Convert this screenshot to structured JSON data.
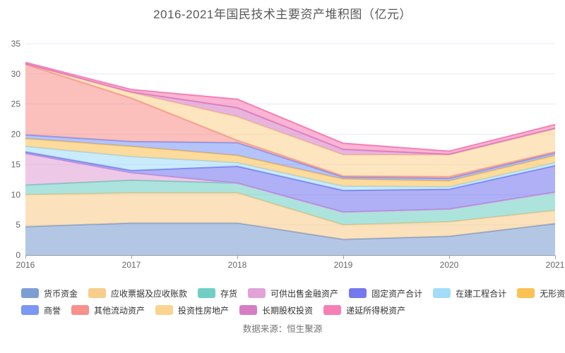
{
  "title": "2016-2021年国民技术主要资产堆积图（亿元）",
  "source": "数据来源：恒生聚源",
  "axis_colors": {
    "grid": "#e3e9f4",
    "axis_line": "#999ea5",
    "tick_label": "#666666"
  },
  "chart_data": {
    "type": "area",
    "stacked": true,
    "title": "2016-2021年国民技术主要资产堆积图（亿元）",
    "xlabel": "",
    "ylabel": "",
    "unit": "亿元",
    "x": [
      2016,
      2017,
      2018,
      2019,
      2020,
      2021
    ],
    "x_tick_labels": [
      "2016",
      "2017",
      "2018",
      "2019",
      "2020",
      "2021"
    ],
    "y_ticks": [
      0,
      5,
      10,
      15,
      20,
      25,
      30,
      35
    ],
    "ylim": [
      0,
      35
    ],
    "grid": true,
    "legend_position": "bottom",
    "legend_rows": [
      [
        0,
        1,
        2,
        3,
        4,
        5,
        6
      ],
      [
        7,
        8,
        9,
        10,
        11
      ]
    ],
    "series": [
      {
        "name": "货币资金",
        "color": "#7C9FD3",
        "values": [
          4.7,
          5.3,
          5.3,
          2.6,
          3.1,
          5.2
        ]
      },
      {
        "name": "应收票据及应收账款",
        "color": "#F8CC8B",
        "values": [
          5.3,
          5.0,
          5.0,
          2.4,
          2.4,
          2.2
        ]
      },
      {
        "name": "存货",
        "color": "#71CEC5",
        "values": [
          1.6,
          2.1,
          1.6,
          2.1,
          2.1,
          3.0
        ]
      },
      {
        "name": "可供出售金融资产",
        "color": "#E2A2D6",
        "values": [
          5.2,
          1.2,
          0.0,
          0.0,
          0.0,
          0.0
        ]
      },
      {
        "name": "固定资产合计",
        "color": "#7577EE",
        "values": [
          0.3,
          0.4,
          2.8,
          3.6,
          3.3,
          4.4
        ]
      },
      {
        "name": "在建工程合计",
        "color": "#A3DCF9",
        "values": [
          0.9,
          2.3,
          0.6,
          0.7,
          0.4,
          0.5
        ]
      },
      {
        "name": "无形资产",
        "color": "#FBC155",
        "values": [
          1.3,
          1.7,
          1.2,
          1.2,
          1.0,
          1.2
        ]
      },
      {
        "name": "商誉",
        "color": "#7D97F5",
        "values": [
          0.6,
          0.8,
          2.1,
          0.3,
          0.4,
          0.4
        ]
      },
      {
        "name": "其他流动资产",
        "color": "#F8908B",
        "values": [
          11.7,
          7.2,
          0.4,
          0.2,
          0.3,
          0.2
        ]
      },
      {
        "name": "投资性房地产",
        "color": "#FBD391",
        "values": [
          0.1,
          0.9,
          3.9,
          3.5,
          3.6,
          3.8
        ]
      },
      {
        "name": "长期股权投资",
        "color": "#D67EC4",
        "values": [
          0.0,
          0.1,
          1.5,
          0.9,
          0.1,
          0.1
        ]
      },
      {
        "name": "递延所得税资产",
        "color": "#F77FB5",
        "values": [
          0.2,
          0.4,
          1.4,
          1.0,
          0.5,
          0.6
        ]
      }
    ]
  }
}
